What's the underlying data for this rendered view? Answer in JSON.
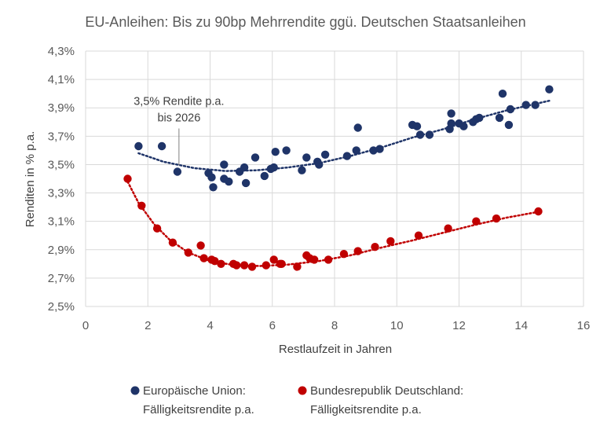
{
  "chart_data": {
    "type": "scatter",
    "title": "EU-Anleihen: Bis zu 90bp Mehrrendite ggü. Deutschen Staatsanleihen",
    "xlabel": "Restlaufzeit in Jahren",
    "ylabel": "Renditen in % p.a.",
    "xlim": [
      0,
      16
    ],
    "ylim": [
      2.5,
      4.3
    ],
    "x_ticks": [
      "0",
      "2",
      "4",
      "6",
      "8",
      "10",
      "12",
      "14",
      "16"
    ],
    "y_ticks": [
      "2,5%",
      "2,7%",
      "2,9%",
      "3,1%",
      "3,3%",
      "3,5%",
      "3,7%",
      "3,9%",
      "4,1%",
      "4,3%"
    ],
    "grid": true,
    "legend_position": "bottom",
    "annotation": {
      "lines": [
        "3,5% Rendite p.a.",
        "bis 2026"
      ],
      "x": 3.0,
      "y": 3.45
    },
    "series": [
      {
        "name_lines": [
          "Europäische Union:",
          "Fälligkeitsrendite p.a."
        ],
        "color": "#1f3468",
        "trend_color": "#1f3468",
        "trend": [
          [
            1.7,
            3.58
          ],
          [
            2.5,
            3.52
          ],
          [
            3.5,
            3.475
          ],
          [
            4.5,
            3.455
          ],
          [
            5.5,
            3.46
          ],
          [
            6.5,
            3.48
          ],
          [
            7.5,
            3.51
          ],
          [
            8.5,
            3.56
          ],
          [
            9.5,
            3.62
          ],
          [
            10.5,
            3.69
          ],
          [
            11.5,
            3.75
          ],
          [
            12.5,
            3.82
          ],
          [
            13.5,
            3.88
          ],
          [
            14.9,
            3.95
          ]
        ],
        "points": [
          [
            1.7,
            3.63
          ],
          [
            2.45,
            3.63
          ],
          [
            2.95,
            3.45
          ],
          [
            3.95,
            3.44
          ],
          [
            4.05,
            3.41
          ],
          [
            4.1,
            3.34
          ],
          [
            4.45,
            3.5
          ],
          [
            4.45,
            3.4
          ],
          [
            4.6,
            3.38
          ],
          [
            4.95,
            3.45
          ],
          [
            5.1,
            3.48
          ],
          [
            5.15,
            3.37
          ],
          [
            5.45,
            3.55
          ],
          [
            5.75,
            3.42
          ],
          [
            5.95,
            3.47
          ],
          [
            6.05,
            3.48
          ],
          [
            6.1,
            3.59
          ],
          [
            6.45,
            3.6
          ],
          [
            6.95,
            3.46
          ],
          [
            7.1,
            3.55
          ],
          [
            7.45,
            3.52
          ],
          [
            7.5,
            3.5
          ],
          [
            7.7,
            3.57
          ],
          [
            8.4,
            3.56
          ],
          [
            8.7,
            3.6
          ],
          [
            8.75,
            3.76
          ],
          [
            9.25,
            3.6
          ],
          [
            9.45,
            3.61
          ],
          [
            10.5,
            3.78
          ],
          [
            10.65,
            3.77
          ],
          [
            10.75,
            3.71
          ],
          [
            11.05,
            3.71
          ],
          [
            11.7,
            3.75
          ],
          [
            11.75,
            3.79
          ],
          [
            11.75,
            3.86
          ],
          [
            12.0,
            3.79
          ],
          [
            12.15,
            3.77
          ],
          [
            12.45,
            3.8
          ],
          [
            12.55,
            3.82
          ],
          [
            12.65,
            3.83
          ],
          [
            13.3,
            3.83
          ],
          [
            13.4,
            4.0
          ],
          [
            13.6,
            3.78
          ],
          [
            13.65,
            3.89
          ],
          [
            14.15,
            3.92
          ],
          [
            14.45,
            3.92
          ],
          [
            14.9,
            4.03
          ]
        ]
      },
      {
        "name_lines": [
          "Bundesrepublik Deutschland:",
          "Fälligkeitsrendite p.a."
        ],
        "color": "#c00000",
        "trend_color": "#c00000",
        "trend": [
          [
            1.35,
            3.38
          ],
          [
            1.7,
            3.23
          ],
          [
            2.2,
            3.08
          ],
          [
            2.7,
            2.97
          ],
          [
            3.3,
            2.88
          ],
          [
            4.0,
            2.82
          ],
          [
            4.8,
            2.79
          ],
          [
            5.6,
            2.785
          ],
          [
            6.5,
            2.795
          ],
          [
            7.5,
            2.82
          ],
          [
            8.5,
            2.86
          ],
          [
            9.5,
            2.915
          ],
          [
            10.5,
            2.965
          ],
          [
            11.5,
            3.02
          ],
          [
            12.5,
            3.075
          ],
          [
            13.5,
            3.125
          ],
          [
            14.5,
            3.165
          ]
        ],
        "points": [
          [
            1.35,
            3.4
          ],
          [
            1.8,
            3.21
          ],
          [
            2.3,
            3.05
          ],
          [
            2.8,
            2.95
          ],
          [
            3.3,
            2.88
          ],
          [
            3.7,
            2.93
          ],
          [
            3.8,
            2.84
          ],
          [
            4.05,
            2.83
          ],
          [
            4.15,
            2.82
          ],
          [
            4.35,
            2.8
          ],
          [
            4.75,
            2.8
          ],
          [
            4.85,
            2.79
          ],
          [
            5.1,
            2.79
          ],
          [
            5.35,
            2.78
          ],
          [
            5.8,
            2.79
          ],
          [
            6.05,
            2.83
          ],
          [
            6.25,
            2.8
          ],
          [
            6.3,
            2.8
          ],
          [
            6.8,
            2.78
          ],
          [
            7.1,
            2.86
          ],
          [
            7.2,
            2.84
          ],
          [
            7.35,
            2.83
          ],
          [
            7.8,
            2.83
          ],
          [
            8.3,
            2.87
          ],
          [
            8.75,
            2.89
          ],
          [
            9.3,
            2.92
          ],
          [
            9.8,
            2.96
          ],
          [
            10.7,
            3.0
          ],
          [
            11.65,
            3.05
          ],
          [
            12.55,
            3.1
          ],
          [
            13.2,
            3.12
          ],
          [
            14.55,
            3.17
          ]
        ]
      }
    ]
  }
}
